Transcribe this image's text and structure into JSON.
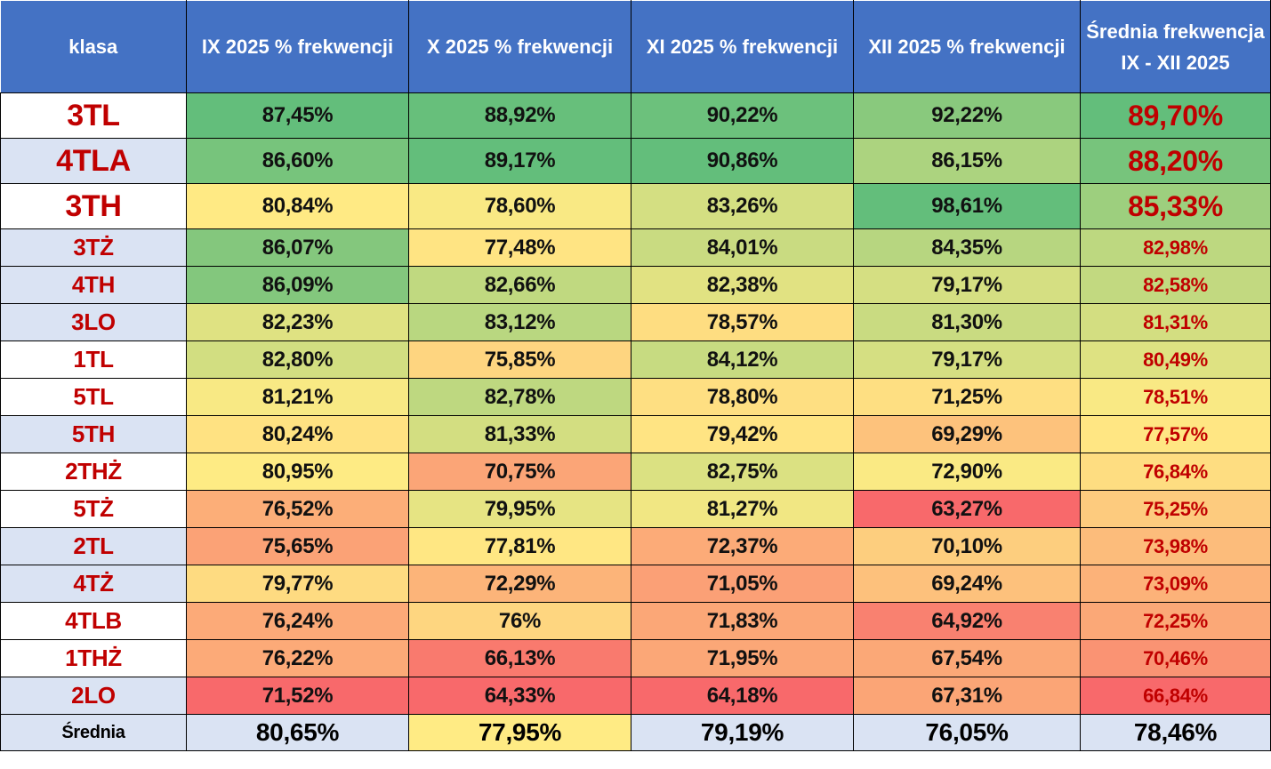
{
  "header": [
    "klasa",
    "IX 2025 % frekwencji",
    "X 2025 % frekwencji",
    "XI 2025 % frekwencji",
    "XII 2025 % frekwencji",
    "Średnia frekwencja IX - XII 2025"
  ],
  "colors": {
    "header_bg": "#4472c4",
    "label_text": "#c00000",
    "row_alt_bg": "#dae3f3",
    "scale_low": "#f8696b",
    "scale_mid": "#ffeb84",
    "scale_high": "#63be7b"
  },
  "rows": [
    {
      "klasa": "3TL",
      "alt": false,
      "values": [
        "87,45%",
        "88,92%",
        "90,22%",
        "92,22%"
      ],
      "avg": "89,70%"
    },
    {
      "klasa": "4TLA",
      "alt": true,
      "values": [
        "86,60%",
        "89,17%",
        "90,86%",
        "86,15%"
      ],
      "avg": "88,20%"
    },
    {
      "klasa": "3TH",
      "alt": false,
      "values": [
        "80,84%",
        "78,60%",
        "83,26%",
        "98,61%"
      ],
      "avg": "85,33%"
    },
    {
      "klasa": "3TŻ",
      "alt": true,
      "values": [
        "86,07%",
        "77,48%",
        "84,01%",
        "84,35%"
      ],
      "avg": "82,98%"
    },
    {
      "klasa": "4TH",
      "alt": true,
      "values": [
        "86,09%",
        "82,66%",
        "82,38%",
        "79,17%"
      ],
      "avg": "82,58%"
    },
    {
      "klasa": "3LO",
      "alt": true,
      "values": [
        "82,23%",
        "83,12%",
        "78,57%",
        "81,30%"
      ],
      "avg": "81,31%"
    },
    {
      "klasa": "1TL",
      "alt": false,
      "values": [
        "82,80%",
        "75,85%",
        "84,12%",
        "79,17%"
      ],
      "avg": "80,49%"
    },
    {
      "klasa": "5TL",
      "alt": false,
      "values": [
        "81,21%",
        "82,78%",
        "78,80%",
        "71,25%"
      ],
      "avg": "78,51%"
    },
    {
      "klasa": "5TH",
      "alt": true,
      "values": [
        "80,24%",
        "81,33%",
        "79,42%",
        "69,29%"
      ],
      "avg": "77,57%"
    },
    {
      "klasa": "2THŻ",
      "alt": false,
      "values": [
        "80,95%",
        "70,75%",
        "82,75%",
        "72,90%"
      ],
      "avg": "76,84%"
    },
    {
      "klasa": "5TŻ",
      "alt": false,
      "values": [
        "76,52%",
        "79,95%",
        "81,27%",
        "63,27%"
      ],
      "avg": "75,25%"
    },
    {
      "klasa": "2TL",
      "alt": true,
      "values": [
        "75,65%",
        "77,81%",
        "72,37%",
        "70,10%"
      ],
      "avg": "73,98%"
    },
    {
      "klasa": "4TŻ",
      "alt": true,
      "values": [
        "79,77%",
        "72,29%",
        "71,05%",
        "69,24%"
      ],
      "avg": "73,09%"
    },
    {
      "klasa": "4TLB",
      "alt": false,
      "values": [
        "76,24%",
        "76%",
        "71,83%",
        "64,92%"
      ],
      "avg": "72,25%"
    },
    {
      "klasa": "1THŻ",
      "alt": false,
      "values": [
        "76,22%",
        "66,13%",
        "71,95%",
        "67,54%"
      ],
      "avg": "70,46%"
    },
    {
      "klasa": "2LO",
      "alt": true,
      "values": [
        "71,52%",
        "64,33%",
        "64,18%",
        "67,31%"
      ],
      "avg": "66,84%"
    }
  ],
  "footer": {
    "label": "Średnia",
    "values": [
      "80,65%",
      "77,95%",
      "79,19%",
      "76,05%"
    ],
    "avg": "78,46%",
    "highlighted_index": 1
  }
}
